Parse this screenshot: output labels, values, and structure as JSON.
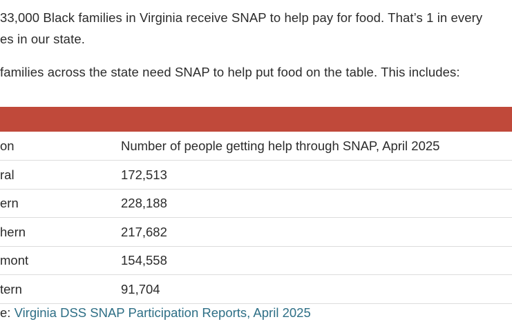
{
  "intro": {
    "line1": "33,000 Black families in Virginia receive SNAP to help pay for food. That’s 1 in every",
    "line2": "es in our state.",
    "line3": "families across the state need SNAP to help put food on the table. This includes:"
  },
  "table": {
    "header_color": "#c0493a",
    "columns": [
      "on",
      "Number of people getting help through SNAP, April 2025"
    ],
    "rows": [
      {
        "region": "ral",
        "value": "172,513"
      },
      {
        "region": "ern",
        "value": "228,188"
      },
      {
        "region": "hern",
        "value": "217,682"
      },
      {
        "region": "mont",
        "value": "154,558"
      },
      {
        "region": "tern",
        "value": "91,704"
      }
    ]
  },
  "source": {
    "prefix": "e: ",
    "link_text": "Virginia DSS SNAP Participation Reports, April 2025"
  }
}
